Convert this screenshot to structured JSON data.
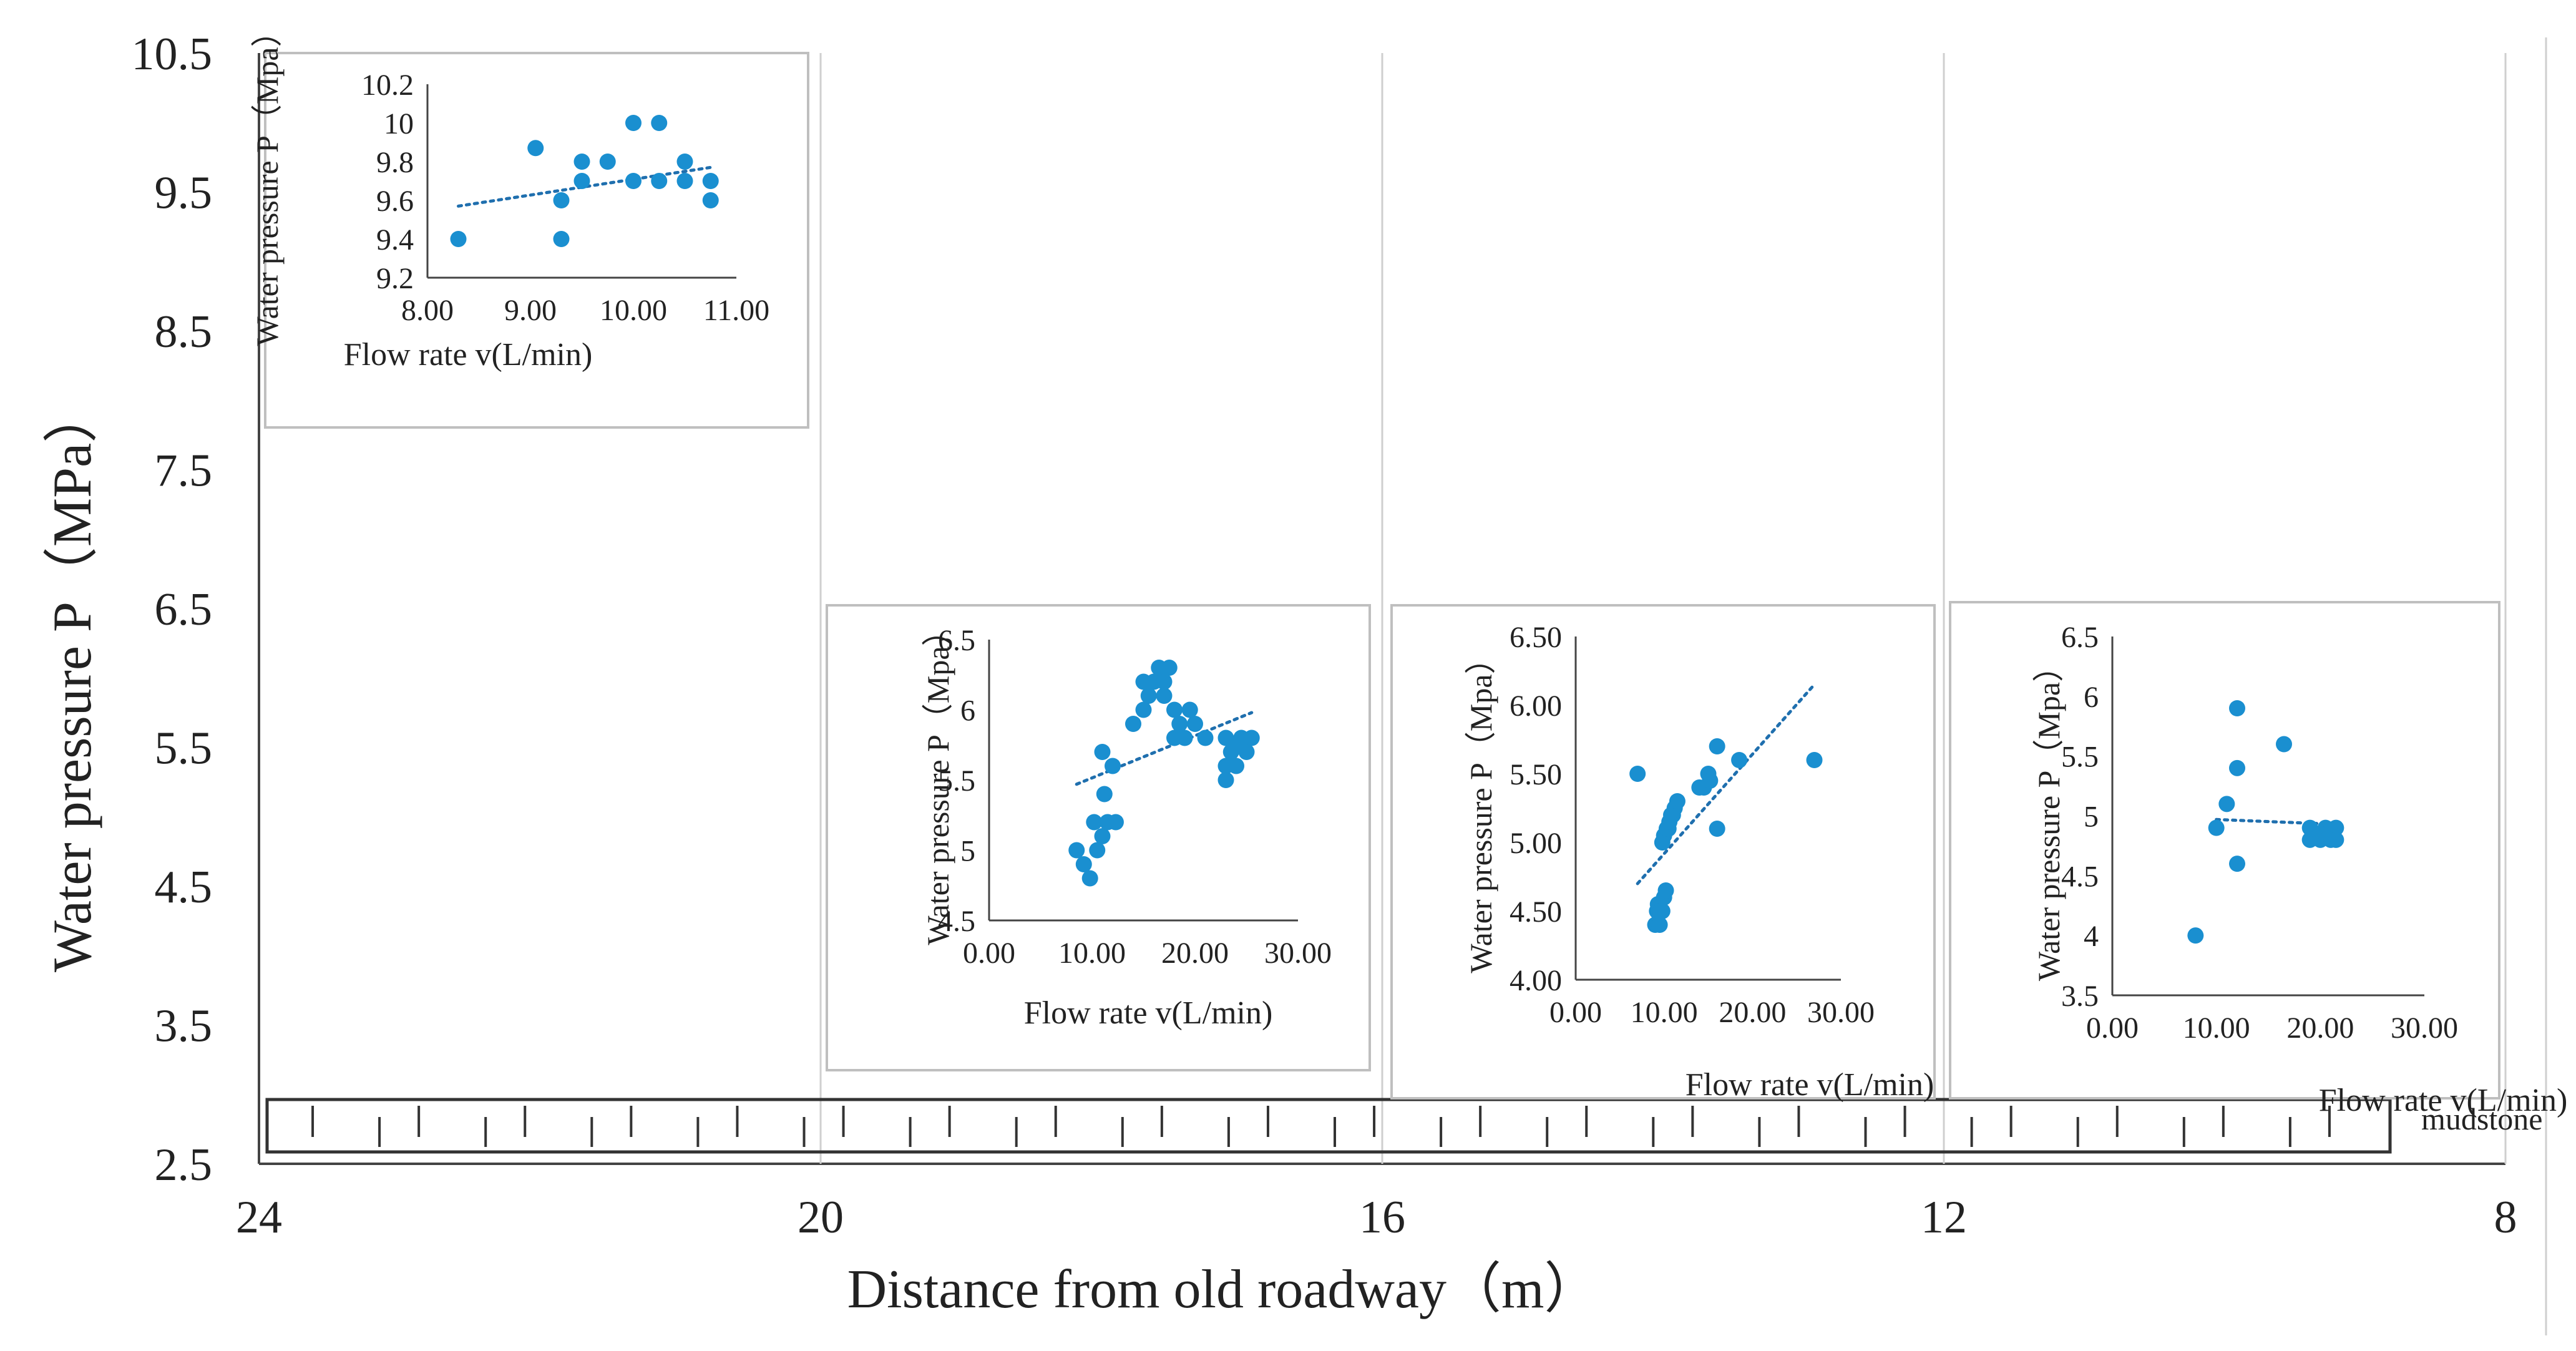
{
  "colors": {
    "point": "#1a8fd0",
    "trend": "#1f6fae",
    "axis": "#444444",
    "grid": "#cfcfcf",
    "frame": "#bfbfbf"
  },
  "chart_data": [
    {
      "id": "main",
      "type": "line",
      "title": "",
      "xlabel": "Distance from old roadway（m）",
      "ylabel": "Water pressure P（MPa）",
      "x_ticks": [
        "24",
        "20",
        "16",
        "12",
        "8"
      ],
      "y_ticks": [
        "10.5",
        "9.5",
        "8.5",
        "7.5",
        "6.5",
        "5.5",
        "4.5",
        "3.5",
        "2.5"
      ],
      "xlim": [
        24,
        8
      ],
      "ylim": [
        2.5,
        10.5
      ],
      "grid": "vertical",
      "strata_label": "mudstone"
    },
    {
      "id": "inset-1",
      "type": "scatter",
      "xlabel": "Flow rate v(L/min)",
      "ylabel": "Water pressure P（Mpa）",
      "x_ticks": [
        "8.00",
        "9.00",
        "10.00",
        "11.00"
      ],
      "y_ticks": [
        "10.2",
        "10",
        "9.8",
        "9.6",
        "9.4",
        "9.2"
      ],
      "xlim": [
        8,
        11
      ],
      "ylim": [
        9.2,
        10.2
      ],
      "points": [
        [
          8.3,
          9.4
        ],
        [
          9.05,
          9.87
        ],
        [
          9.3,
          9.6
        ],
        [
          9.3,
          9.4
        ],
        [
          9.5,
          9.7
        ],
        [
          9.5,
          9.8
        ],
        [
          9.75,
          9.8
        ],
        [
          10.0,
          9.7
        ],
        [
          10.0,
          10.0
        ],
        [
          10.25,
          10.0
        ],
        [
          10.25,
          9.7
        ],
        [
          10.5,
          9.8
        ],
        [
          10.5,
          9.7
        ],
        [
          10.75,
          9.7
        ],
        [
          10.75,
          9.6
        ]
      ],
      "trendline": [
        [
          8.3,
          9.57
        ],
        [
          10.75,
          9.77
        ]
      ]
    },
    {
      "id": "inset-2",
      "type": "scatter",
      "xlabel": "Flow rate v(L/min)",
      "ylabel": "Water pressure P（Mpa）",
      "x_ticks": [
        "0.00",
        "10.00",
        "20.00",
        "30.00"
      ],
      "y_ticks": [
        "6.5",
        "6",
        "5.5",
        "5",
        "4.5"
      ],
      "xlim": [
        0,
        30
      ],
      "ylim": [
        4.5,
        6.5
      ],
      "points": [
        [
          8.5,
          5.0
        ],
        [
          9.2,
          4.9
        ],
        [
          9.8,
          4.8
        ],
        [
          10.5,
          5.0
        ],
        [
          10.2,
          5.2
        ],
        [
          11.0,
          5.1
        ],
        [
          11.5,
          5.2
        ],
        [
          12.3,
          5.2
        ],
        [
          11.2,
          5.4
        ],
        [
          11.0,
          5.7
        ],
        [
          12.0,
          5.6
        ],
        [
          14.0,
          5.9
        ],
        [
          15.0,
          6.0
        ],
        [
          15.5,
          6.1
        ],
        [
          15.0,
          6.2
        ],
        [
          16.0,
          6.2
        ],
        [
          16.5,
          6.3
        ],
        [
          17.0,
          6.2
        ],
        [
          17.5,
          6.3
        ],
        [
          17.0,
          6.1
        ],
        [
          18.0,
          6.0
        ],
        [
          18.5,
          5.9
        ],
        [
          19.0,
          5.8
        ],
        [
          19.5,
          6.0
        ],
        [
          20.0,
          5.9
        ],
        [
          18.0,
          5.8
        ],
        [
          21.0,
          5.8
        ],
        [
          23.0,
          5.5
        ],
        [
          23.0,
          5.6
        ],
        [
          23.5,
          5.7
        ],
        [
          23.0,
          5.8
        ],
        [
          24.0,
          5.6
        ],
        [
          24.5,
          5.8
        ],
        [
          25.0,
          5.7
        ],
        [
          25.5,
          5.8
        ],
        [
          24.0,
          5.75
        ]
      ],
      "trendline": [
        [
          8.5,
          5.47
        ],
        [
          25.5,
          5.98
        ]
      ]
    },
    {
      "id": "inset-3",
      "type": "scatter",
      "xlabel": "Flow rate v(L/min)",
      "ylabel": "Water pressure P（Mpa）",
      "x_ticks": [
        "0.00",
        "10.00",
        "20.00",
        "30.00"
      ],
      "y_ticks": [
        "6.50",
        "6.00",
        "5.50",
        "5.00",
        "4.50",
        "4.00"
      ],
      "xlim": [
        0,
        30
      ],
      "ylim": [
        4.0,
        6.5
      ],
      "points": [
        [
          7.0,
          5.5
        ],
        [
          9.0,
          4.4
        ],
        [
          9.2,
          4.5
        ],
        [
          9.5,
          4.4
        ],
        [
          9.8,
          4.5
        ],
        [
          9.3,
          4.55
        ],
        [
          10.0,
          4.6
        ],
        [
          10.2,
          4.65
        ],
        [
          9.6,
          4.5
        ],
        [
          9.8,
          5.0
        ],
        [
          10.0,
          5.05
        ],
        [
          10.3,
          5.1
        ],
        [
          10.5,
          5.1
        ],
        [
          10.8,
          5.2
        ],
        [
          11.0,
          5.2
        ],
        [
          10.6,
          5.15
        ],
        [
          11.2,
          5.25
        ],
        [
          11.5,
          5.3
        ],
        [
          14.0,
          5.4
        ],
        [
          14.5,
          5.4
        ],
        [
          15.0,
          5.5
        ],
        [
          15.2,
          5.45
        ],
        [
          16.0,
          5.7
        ],
        [
          16.0,
          5.1
        ],
        [
          18.5,
          5.6
        ],
        [
          27.0,
          5.6
        ]
      ],
      "trendline": [
        [
          7.0,
          4.7
        ],
        [
          27.0,
          6.15
        ]
      ]
    },
    {
      "id": "inset-4",
      "type": "scatter",
      "xlabel": "Flow rate v(L/min)",
      "ylabel": "Water pressure P（Mpa）",
      "x_ticks": [
        "0.00",
        "10.00",
        "20.00",
        "30.00"
      ],
      "y_ticks": [
        "6.5",
        "6",
        "5.5",
        "5",
        "4.5",
        "4",
        "3.5"
      ],
      "xlim": [
        0,
        30
      ],
      "ylim": [
        3.5,
        6.5
      ],
      "points": [
        [
          8.0,
          4.0
        ],
        [
          10.0,
          4.9
        ],
        [
          11.0,
          5.1
        ],
        [
          12.0,
          5.4
        ],
        [
          12.0,
          5.9
        ],
        [
          12.0,
          4.6
        ],
        [
          16.5,
          5.6
        ],
        [
          19.0,
          4.8
        ],
        [
          19.0,
          4.9
        ],
        [
          20.0,
          4.8
        ],
        [
          20.5,
          4.9
        ],
        [
          21.0,
          4.8
        ],
        [
          21.5,
          4.9
        ],
        [
          21.5,
          4.8
        ],
        [
          20.0,
          4.85
        ]
      ],
      "trendline": [
        [
          10.0,
          4.97
        ],
        [
          21.5,
          4.93
        ]
      ]
    }
  ]
}
